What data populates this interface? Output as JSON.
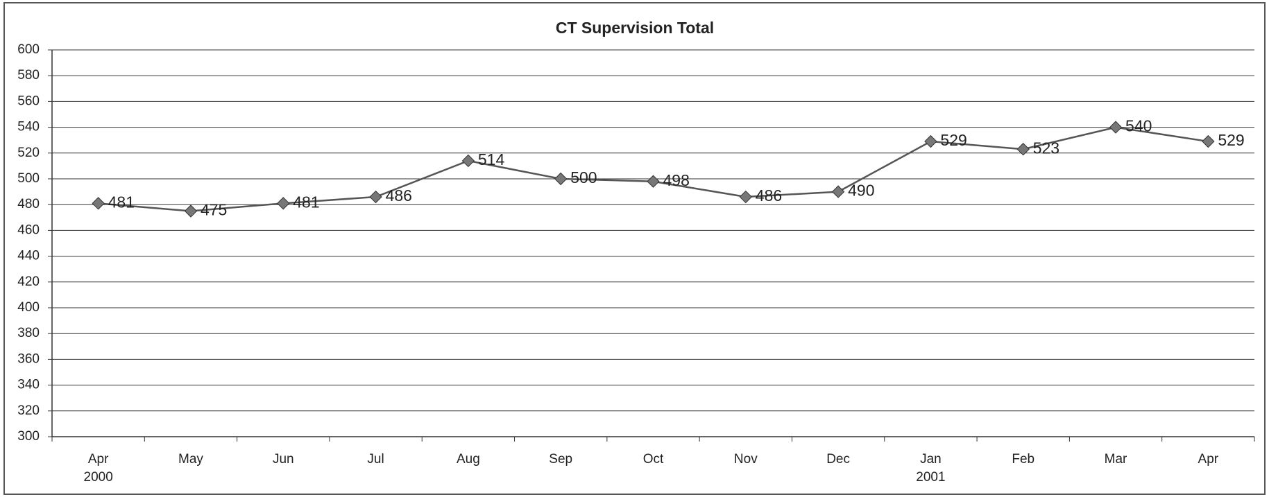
{
  "chart_data": {
    "type": "line",
    "title": "CT Supervision Total",
    "categories": [
      "Apr 2000",
      "May",
      "Jun",
      "Jul",
      "Aug",
      "Sep",
      "Oct",
      "Nov",
      "Dec",
      "Jan 2001",
      "Feb",
      "Mar",
      "Apr"
    ],
    "values": [
      481,
      475,
      481,
      486,
      514,
      500,
      498,
      486,
      490,
      529,
      523,
      540,
      529
    ],
    "color": "#555555",
    "ylim": [
      300,
      600
    ],
    "yticks": [
      300,
      320,
      340,
      360,
      380,
      400,
      420,
      440,
      460,
      480,
      500,
      520,
      540,
      560,
      580,
      600
    ],
    "grid": true
  }
}
